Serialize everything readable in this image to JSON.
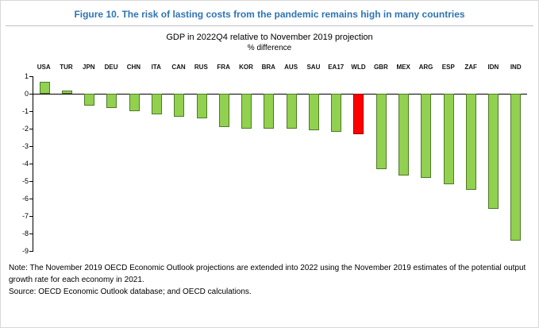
{
  "figure": {
    "title": "Figure 10. The risk of lasting costs from the pandemic remains high in many countries"
  },
  "chart_data": {
    "type": "bar",
    "title": "GDP in 2022Q4 relative to November 2019 projection",
    "subtitle": "% difference",
    "categories": [
      "USA",
      "TUR",
      "JPN",
      "DEU",
      "CHN",
      "ITA",
      "CAN",
      "RUS",
      "FRA",
      "KOR",
      "BRA",
      "AUS",
      "SAU",
      "EA17",
      "WLD",
      "GBR",
      "MEX",
      "ARG",
      "ESP",
      "ZAF",
      "IDN",
      "IND"
    ],
    "values": [
      0.7,
      0.2,
      -0.7,
      -0.8,
      -1.0,
      -1.2,
      -1.3,
      -1.4,
      -1.9,
      -2.0,
      -2.0,
      -2.0,
      -2.1,
      -2.2,
      -2.3,
      -4.3,
      -4.7,
      -4.8,
      -5.2,
      -5.5,
      -6.6,
      -8.4
    ],
    "highlight_category": "WLD",
    "ylim": [
      -9,
      1
    ],
    "yticks": [
      1,
      0,
      -1,
      -2,
      -3,
      -4,
      -5,
      -6,
      -7,
      -8,
      -9
    ],
    "grid": "off",
    "legend": "none",
    "colors": {
      "fill": "#92d050",
      "border": "#4e7a27",
      "highlight": "#ff0000",
      "highlight_border": "#900000",
      "axis": "#000000",
      "title_accent": "#2e74b5"
    }
  },
  "notes": {
    "note": "Note: The November 2019 OECD Economic Outlook projections are extended into 2022 using the November 2019 estimates of the potential output growth rate for each economy in 2021.",
    "source": "Source: OECD Economic Outlook database; and OECD calculations."
  }
}
